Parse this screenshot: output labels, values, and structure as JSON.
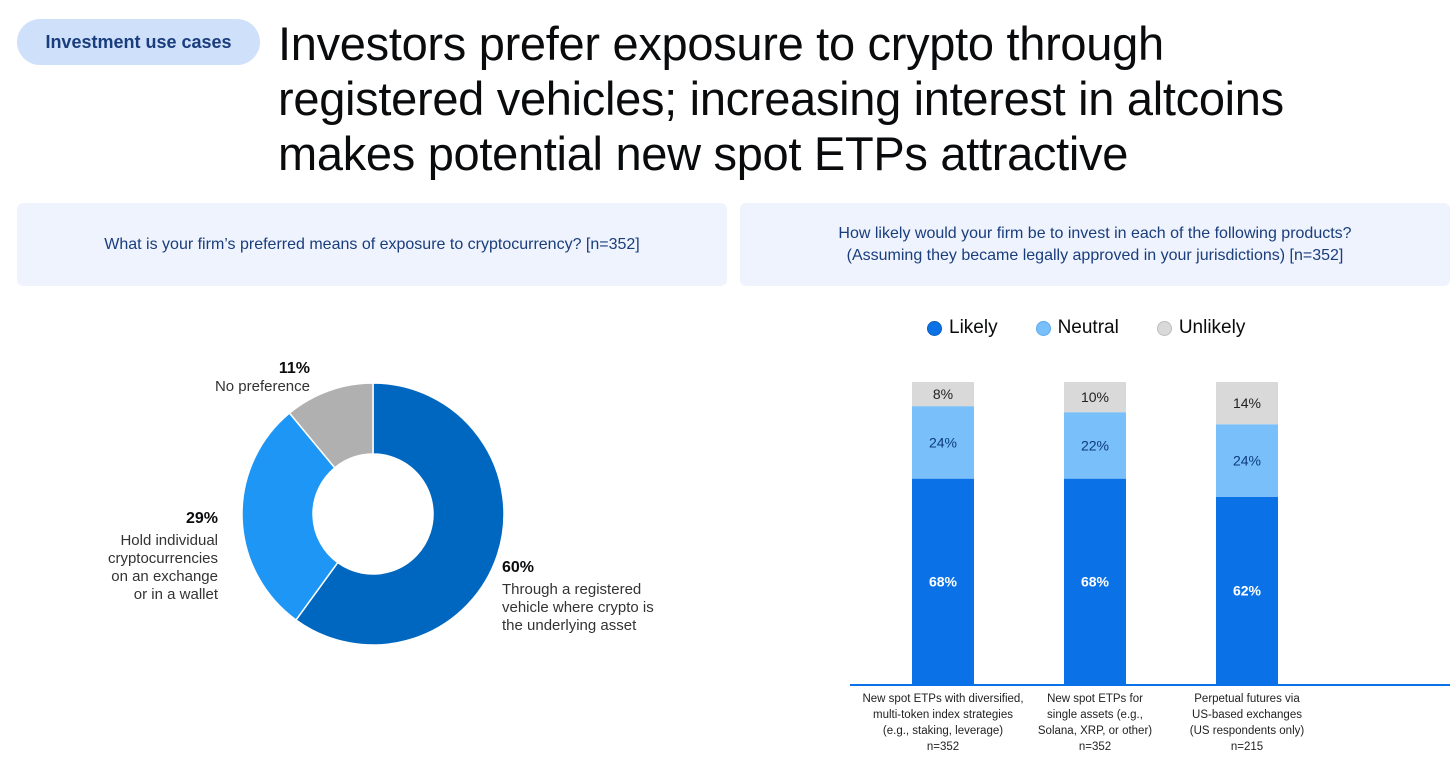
{
  "tag": "Investment use cases",
  "title_lines": [
    "Investors prefer exposure to crypto through",
    "registered vehicles; increasing interest in altcoins",
    "makes potential new spot ETPs attractive"
  ],
  "left_question": "What is your firm’s preferred means of exposure to cryptocurrency? [n=352]",
  "right_question": [
    "How likely would your firm be to invest in each of the following products?",
    "(Assuming they became legally approved in your jurisdictions) [n=352]"
  ],
  "colors": {
    "likely": "#0a72e6",
    "neutral": "#79bffa",
    "unlikely": "#d9d9d9",
    "pie_registered": "#0067c0",
    "pie_individual": "#1d96f6",
    "pie_nopref": "#b0b0b0"
  },
  "chart_data": [
    {
      "type": "pie",
      "title": "What is your firm’s preferred means of exposure to cryptocurrency? [n=352]",
      "slices": [
        {
          "label_lines": [
            "Through a registered",
            "vehicle where crypto is",
            "the underlying asset"
          ],
          "value": 60,
          "display": "60%"
        },
        {
          "label_lines": [
            "Hold individual",
            "cryptocurrencies",
            "on an exchange",
            "or in a wallet"
          ],
          "value": 29,
          "display": "29%"
        },
        {
          "label_lines": [
            "No preference"
          ],
          "value": 11,
          "display": "11%"
        }
      ]
    },
    {
      "type": "bar",
      "stacked": true,
      "title": "How likely would your firm be to invest in each of the following products?",
      "legend": [
        "Likely",
        "Neutral",
        "Unlikely"
      ],
      "categories": [
        [
          "New spot ETPs with diversified,",
          "multi-token index strategies",
          "(e.g., staking, leverage)",
          "n=352"
        ],
        [
          "New spot ETPs for",
          "single assets (e.g.,",
          "Solana, XRP, or other)",
          "n=352"
        ],
        [
          "Perpetual futures via",
          "US-based exchanges",
          "(US respondents only)",
          "n=215"
        ]
      ],
      "series": [
        {
          "name": "Likely",
          "values": [
            68,
            68,
            62
          ]
        },
        {
          "name": "Neutral",
          "values": [
            24,
            22,
            24
          ]
        },
        {
          "name": "Unlikely",
          "values": [
            8,
            10,
            14
          ]
        }
      ],
      "value_suffix": "%"
    }
  ]
}
